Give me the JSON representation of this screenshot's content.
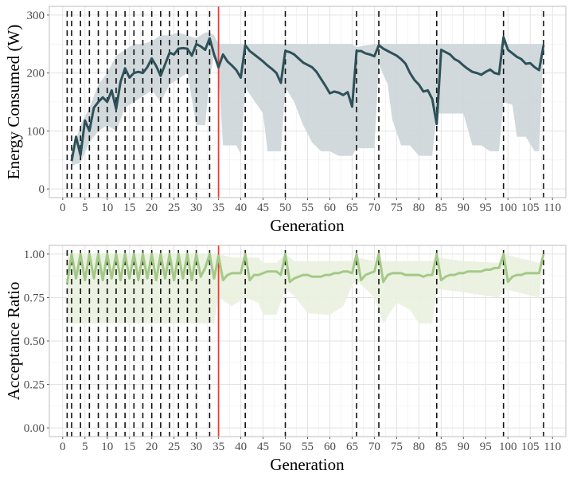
{
  "chart_data": [
    {
      "type": "line",
      "title": "",
      "xlabel": "Generation",
      "ylabel": "Energy Consumed (W)",
      "xlim": [
        -3,
        113
      ],
      "ylim": [
        -15,
        315
      ],
      "xticks": [
        0,
        5,
        10,
        15,
        20,
        25,
        30,
        35,
        40,
        45,
        50,
        55,
        60,
        65,
        70,
        75,
        80,
        85,
        90,
        95,
        100,
        105,
        110
      ],
      "yticks": [
        0,
        100,
        200,
        300
      ],
      "grid": true,
      "line_color": "#2e5159",
      "band_color": "#ccd5d8",
      "mean": {
        "x": [
          2,
          3,
          4,
          5,
          6,
          7,
          8,
          9,
          10,
          11,
          12,
          13,
          14,
          15,
          16,
          17,
          18,
          19,
          20,
          21,
          22,
          23,
          24,
          25,
          26,
          27,
          28,
          29,
          30,
          31,
          32,
          33,
          34,
          35,
          36,
          37,
          38,
          39,
          40,
          41,
          42,
          43,
          44,
          45,
          46,
          47,
          48,
          49,
          50,
          51,
          52,
          53,
          54,
          55,
          56,
          57,
          58,
          59,
          60,
          61,
          62,
          63,
          64,
          65,
          66,
          67,
          68,
          69,
          70,
          71,
          72,
          73,
          74,
          75,
          76,
          77,
          78,
          79,
          80,
          81,
          82,
          83,
          84,
          85,
          86,
          87,
          88,
          89,
          90,
          91,
          92,
          93,
          94,
          95,
          96,
          97,
          98,
          99,
          100,
          101,
          102,
          103,
          104,
          105,
          106,
          107,
          108
        ],
        "y": [
          48,
          90,
          58,
          118,
          100,
          140,
          150,
          158,
          150,
          170,
          138,
          185,
          208,
          192,
          200,
          202,
          200,
          210,
          225,
          212,
          195,
          215,
          235,
          232,
          242,
          243,
          242,
          230,
          250,
          246,
          240,
          260,
          232,
          210,
          232,
          220,
          213,
          205,
          192,
          248,
          238,
          232,
          226,
          220,
          213,
          207,
          200,
          183,
          238,
          236,
          232,
          225,
          218,
          214,
          210,
          202,
          190,
          178,
          165,
          168,
          166,
          162,
          167,
          142,
          238,
          238,
          234,
          232,
          229,
          248,
          242,
          238,
          234,
          230,
          224,
          216,
          200,
          188,
          180,
          168,
          170,
          155,
          112,
          240,
          236,
          232,
          224,
          220,
          213,
          207,
          202,
          200,
          197,
          202,
          206,
          200,
          198,
          262,
          240,
          234,
          228,
          224,
          216,
          217,
          210,
          205,
          248
        ]
      },
      "band": [
        [
          2,
          40,
          60
        ],
        [
          4,
          45,
          110
        ],
        [
          6,
          80,
          140
        ],
        [
          8,
          100,
          180
        ],
        [
          10,
          110,
          200
        ],
        [
          12,
          100,
          230
        ],
        [
          14,
          140,
          240
        ],
        [
          16,
          150,
          250
        ],
        [
          18,
          160,
          250
        ],
        [
          20,
          170,
          255
        ],
        [
          22,
          150,
          265
        ],
        [
          24,
          180,
          265
        ],
        [
          26,
          190,
          270
        ],
        [
          28,
          200,
          265
        ],
        [
          30,
          110,
          260
        ],
        [
          32,
          110,
          270
        ],
        [
          33,
          190,
          270
        ],
        [
          34,
          230,
          265
        ],
        [
          35,
          200,
          250
        ],
        [
          36,
          75,
          250
        ],
        [
          39,
          75,
          250
        ],
        [
          40,
          60,
          250
        ],
        [
          41,
          175,
          250
        ],
        [
          45,
          130,
          250
        ],
        [
          46,
          65,
          250
        ],
        [
          49,
          65,
          250
        ],
        [
          50,
          175,
          250
        ],
        [
          52,
          150,
          250
        ],
        [
          54,
          110,
          250
        ],
        [
          56,
          80,
          250
        ],
        [
          58,
          65,
          250
        ],
        [
          60,
          65,
          250
        ],
        [
          62,
          57,
          250
        ],
        [
          65,
          57,
          250
        ],
        [
          66,
          70,
          245
        ],
        [
          70,
          70,
          250
        ],
        [
          71,
          215,
          250
        ],
        [
          73,
          180,
          250
        ],
        [
          74,
          120,
          250
        ],
        [
          76,
          75,
          250
        ],
        [
          78,
          75,
          250
        ],
        [
          80,
          57,
          250
        ],
        [
          83,
          57,
          250
        ],
        [
          84,
          130,
          250
        ],
        [
          90,
          130,
          250
        ],
        [
          92,
          75,
          250
        ],
        [
          94,
          75,
          250
        ],
        [
          96,
          65,
          250
        ],
        [
          98,
          65,
          250
        ],
        [
          99,
          150,
          250
        ],
        [
          101,
          145,
          250
        ],
        [
          102,
          90,
          250
        ],
        [
          104,
          90,
          250
        ],
        [
          106,
          65,
          250
        ],
        [
          107,
          65,
          250
        ],
        [
          108,
          250,
          250
        ]
      ],
      "vlines_dashed": [
        1,
        2,
        4,
        6,
        8,
        10,
        12,
        14,
        16,
        18,
        20,
        22,
        24,
        26,
        28,
        30,
        33,
        41,
        50,
        66,
        71,
        84,
        99,
        108
      ],
      "vline_red": 35
    },
    {
      "type": "line",
      "title": "",
      "xlabel": "Generation",
      "ylabel": "Acceptance Ratio",
      "xlim": [
        -3,
        113
      ],
      "ylim": [
        -0.05,
        1.05
      ],
      "xticks": [
        0,
        5,
        10,
        15,
        20,
        25,
        30,
        35,
        40,
        45,
        50,
        55,
        60,
        65,
        70,
        75,
        80,
        85,
        90,
        95,
        100,
        105,
        110
      ],
      "yticks": [
        "0.00",
        "0.25",
        "0.50",
        "0.75",
        "1.00"
      ],
      "grid": true,
      "line_color": "#a4c986",
      "band_color": "#e9f1df",
      "mean": {
        "x": [
          1,
          2,
          3,
          4,
          5,
          6,
          7,
          8,
          9,
          10,
          11,
          12,
          13,
          14,
          15,
          16,
          17,
          18,
          19,
          20,
          21,
          22,
          23,
          24,
          25,
          26,
          27,
          28,
          29,
          30,
          31,
          32,
          33,
          34,
          35,
          36,
          37,
          38,
          39,
          40,
          41,
          42,
          43,
          44,
          45,
          46,
          47,
          48,
          49,
          50,
          51,
          52,
          53,
          54,
          55,
          56,
          57,
          58,
          59,
          60,
          61,
          62,
          63,
          64,
          65,
          66,
          67,
          68,
          69,
          70,
          71,
          72,
          73,
          74,
          75,
          76,
          77,
          78,
          79,
          80,
          81,
          82,
          83,
          84,
          85,
          86,
          87,
          88,
          89,
          90,
          91,
          92,
          93,
          94,
          95,
          96,
          97,
          98,
          99,
          100,
          101,
          102,
          103,
          104,
          105,
          106,
          107,
          108
        ],
        "y": [
          0.83,
          1.0,
          0.86,
          1.0,
          0.85,
          1.0,
          0.86,
          1.0,
          0.85,
          1.0,
          0.86,
          1.0,
          0.85,
          1.0,
          0.86,
          1.0,
          0.85,
          1.0,
          0.86,
          1.0,
          0.85,
          1.0,
          0.86,
          1.0,
          0.85,
          1.0,
          0.86,
          1.0,
          0.85,
          1.0,
          0.87,
          0.92,
          1.0,
          0.86,
          0.99,
          0.85,
          0.88,
          0.89,
          0.89,
          0.89,
          1.0,
          0.85,
          0.88,
          0.88,
          0.89,
          0.9,
          0.9,
          0.9,
          0.88,
          1.0,
          0.84,
          0.86,
          0.87,
          0.88,
          0.88,
          0.87,
          0.87,
          0.87,
          0.88,
          0.88,
          0.89,
          0.89,
          0.9,
          0.9,
          0.89,
          1.0,
          0.85,
          0.88,
          0.89,
          0.9,
          1.0,
          0.84,
          0.88,
          0.89,
          0.89,
          0.89,
          0.88,
          0.88,
          0.88,
          0.88,
          0.87,
          0.88,
          0.88,
          1.0,
          0.85,
          0.87,
          0.88,
          0.88,
          0.89,
          0.89,
          0.9,
          0.9,
          0.9,
          0.9,
          0.91,
          0.91,
          0.92,
          0.92,
          1.0,
          0.84,
          0.87,
          0.88,
          0.88,
          0.89,
          0.89,
          0.89,
          0.89,
          1.0
        ]
      },
      "band": [
        [
          1,
          0.6,
          1
        ],
        [
          34,
          0.6,
          1
        ],
        [
          35,
          0.75,
          1
        ],
        [
          38,
          0.7,
          0.98
        ],
        [
          41,
          0.75,
          0.98
        ],
        [
          44,
          0.72,
          0.98
        ],
        [
          45,
          0.65,
          0.95
        ],
        [
          48,
          0.65,
          0.95
        ],
        [
          50,
          0.8,
          1
        ],
        [
          52,
          0.76,
          0.96
        ],
        [
          55,
          0.66,
          0.96
        ],
        [
          60,
          0.65,
          0.96
        ],
        [
          63,
          0.7,
          0.96
        ],
        [
          65,
          0.82,
          0.96
        ],
        [
          66,
          0.85,
          0.98
        ],
        [
          70,
          0.75,
          0.96
        ],
        [
          72,
          0.6,
          0.96
        ],
        [
          75,
          0.72,
          0.96
        ],
        [
          78,
          0.68,
          0.96
        ],
        [
          80,
          0.6,
          0.96
        ],
        [
          83,
          0.6,
          0.96
        ],
        [
          84,
          0.8,
          0.98
        ],
        [
          90,
          0.78,
          0.96
        ],
        [
          98,
          0.75,
          0.95
        ],
        [
          99,
          0.8,
          1
        ],
        [
          107,
          0.75,
          0.95
        ],
        [
          108,
          1,
          1
        ]
      ],
      "vlines_dashed": [
        1,
        2,
        4,
        6,
        8,
        10,
        12,
        14,
        16,
        18,
        20,
        22,
        24,
        26,
        28,
        30,
        33,
        41,
        50,
        66,
        71,
        84,
        99,
        108
      ],
      "vline_red": 35
    }
  ]
}
